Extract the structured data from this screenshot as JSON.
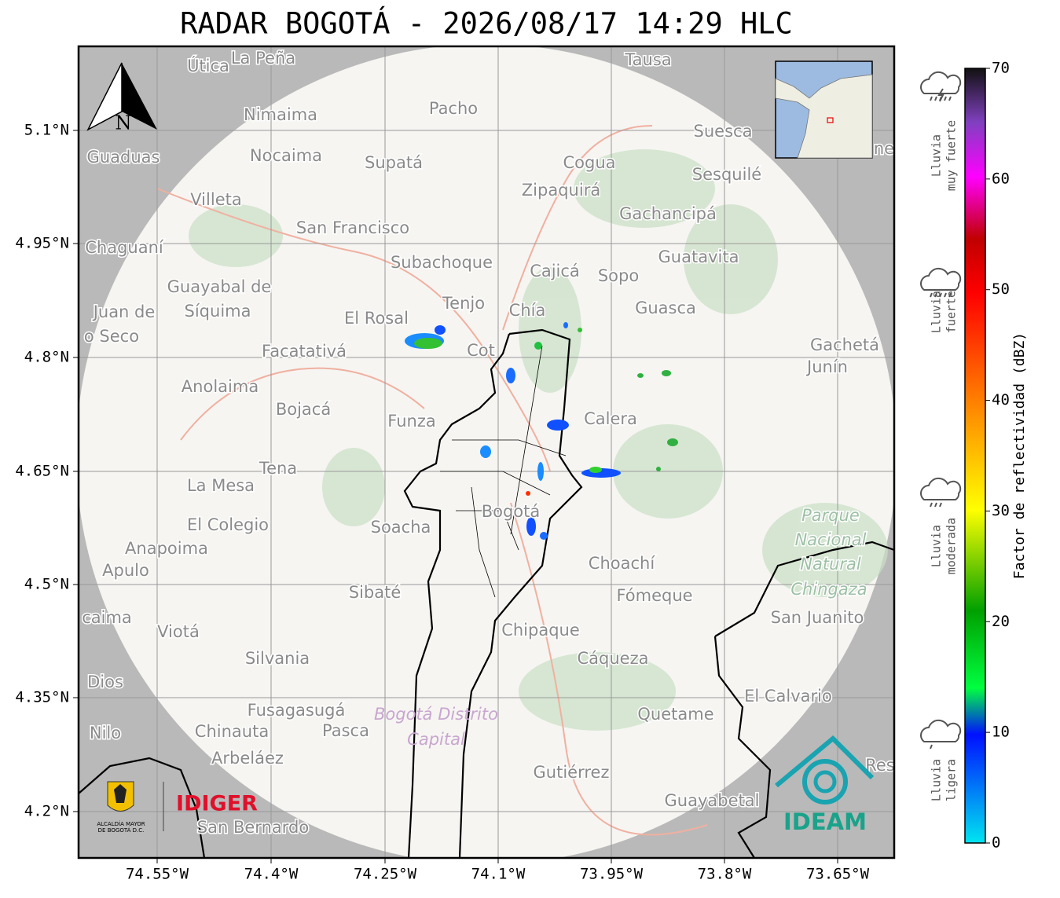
{
  "title": "RADAR BOGOTÁ - 2026/08/17 14:29 HLC",
  "map": {
    "north": "N",
    "lon_ticks": [
      "74.55°W",
      "74.4°W",
      "74.25°W",
      "74.1°W",
      "73.95°W",
      "73.8°W",
      "73.65°W"
    ],
    "lat_ticks": [
      "5.1°N",
      "4.95°N",
      "4.8°N",
      "4.65°N",
      "4.5°N",
      "4.35°N",
      "4.2°N"
    ],
    "places": [
      "Útica",
      "La Peña",
      "Tausa",
      "Pacho",
      "Nimaima",
      "Suesca",
      "Guaduas",
      "Nocaima",
      "Supatá",
      "Cogua",
      "Sesquilé",
      "Zipaquirá",
      "Villeta",
      "Gachancipá",
      "San Francisco",
      "Chaguaní",
      "Guatavita",
      "Subachoque",
      "Cajicá",
      "Sopo",
      "Guayabal de",
      "Síquima",
      "Tenjo",
      "Chía",
      "Guasca",
      "El Rosal",
      "Juan de",
      "o Seco",
      "Facatativá",
      "Gachetá",
      "Junín",
      "Cot",
      "Anolaima",
      "Bojacá",
      "Funza",
      "Calera",
      "Tena",
      "La Mesa",
      "Bogotá",
      "El Colegio",
      "Soacha",
      "Anapoima",
      "Apulo",
      "Choachí",
      "Sibaté",
      "Fómeque",
      "San Juanito",
      "caima",
      "Viotá",
      "Chipaque",
      "Silvania",
      "Cáqueza",
      "Dios",
      "El Calvario",
      "Fusagasugá",
      "Quetame",
      "Nilo",
      "Chinauta",
      "Pasca",
      "Arbeláez",
      "Gutiérrez",
      "Guayabetal",
      "San Bernardo",
      "Res",
      "ne"
    ],
    "park": [
      "Parque",
      "Nacional",
      "Natural",
      "Chingaza"
    ],
    "district": [
      "Bogotá Distrito",
      "Capital"
    ]
  },
  "logos": {
    "alcaldia": [
      "ALCALDÍA MAYOR",
      "DE BOGOTÁ D.C."
    ],
    "idiger": "IDIGER",
    "ideam": "IDEAM"
  },
  "colorbar": {
    "label": "Factor de reflectividad (dBZ)",
    "range": [
      0,
      70
    ],
    "ticks": [
      0,
      10,
      20,
      30,
      40,
      50,
      60,
      70
    ],
    "rain_levels": [
      [
        "Lluvia",
        "muy fuerte"
      ],
      [
        "Lluvia",
        "fuerte"
      ],
      [
        "Lluvia",
        "moderada"
      ],
      [
        "Lluvia",
        "ligera"
      ]
    ]
  }
}
